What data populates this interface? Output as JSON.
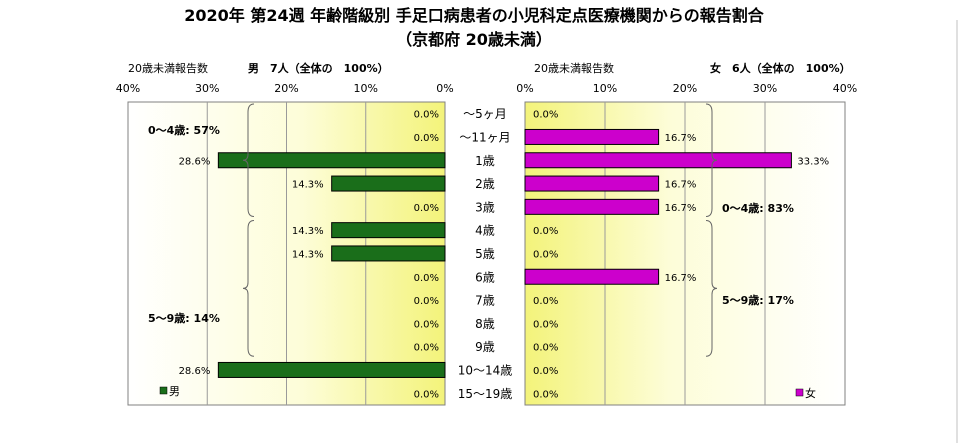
{
  "title": "2020年 第24週 年齢階級別 手足口病患者の小児科定点医療機関からの報告割合",
  "subtitle": "（京都府 20歳未満）",
  "chart_data": {
    "type": "bar",
    "orientation": "horizontal-butterfly",
    "categories": [
      "～5ヶ月",
      "～11ヶ月",
      "1歳",
      "2歳",
      "3歳",
      "4歳",
      "5歳",
      "6歳",
      "7歳",
      "8歳",
      "9歳",
      "10～14歳",
      "15～19歳"
    ],
    "xlim": [
      0,
      40
    ],
    "ticks": [
      "40%",
      "30%",
      "20%",
      "10%",
      "0%"
    ],
    "ticks_right": [
      "0%",
      "10%",
      "20%",
      "30%",
      "40%"
    ],
    "series": [
      {
        "name": "男",
        "side": "left",
        "header_label": "20歳未満報告数",
        "header_count": "男　7人（全体の　100%）",
        "color": "#1a6e1a",
        "values": [
          0.0,
          0.0,
          28.6,
          14.3,
          0.0,
          14.3,
          14.3,
          0.0,
          0.0,
          0.0,
          0.0,
          28.6,
          0.0
        ],
        "labels": [
          "0.0%",
          "0.0%",
          "28.6%",
          "14.3%",
          "0.0%",
          "14.3%",
          "14.3%",
          "0.0%",
          "0.0%",
          "0.0%",
          "0.0%",
          "28.6%",
          "0.0%"
        ],
        "legend": "男",
        "groups": [
          {
            "label": "0～4歳: 57%",
            "from": 0,
            "to": 4
          },
          {
            "label": "5～9歳: 14%",
            "from": 5,
            "to": 10
          }
        ]
      },
      {
        "name": "女",
        "side": "right",
        "header_label": "20歳未満報告数",
        "header_count": "女　6人（全体の　100%）",
        "color": "#cc00cc",
        "values": [
          0.0,
          16.7,
          33.3,
          16.7,
          16.7,
          0.0,
          0.0,
          16.7,
          0.0,
          0.0,
          0.0,
          0.0,
          0.0
        ],
        "labels": [
          "0.0%",
          "16.7%",
          "33.3%",
          "16.7%",
          "16.7%",
          "0.0%",
          "0.0%",
          "16.7%",
          "0.0%",
          "0.0%",
          "0.0%",
          "0.0%",
          "0.0%"
        ],
        "legend": "女",
        "groups": [
          {
            "label": "0～4歳: 83%",
            "from": 0,
            "to": 4
          },
          {
            "label": "5～9歳: 17%",
            "from": 5,
            "to": 10
          }
        ]
      }
    ]
  }
}
